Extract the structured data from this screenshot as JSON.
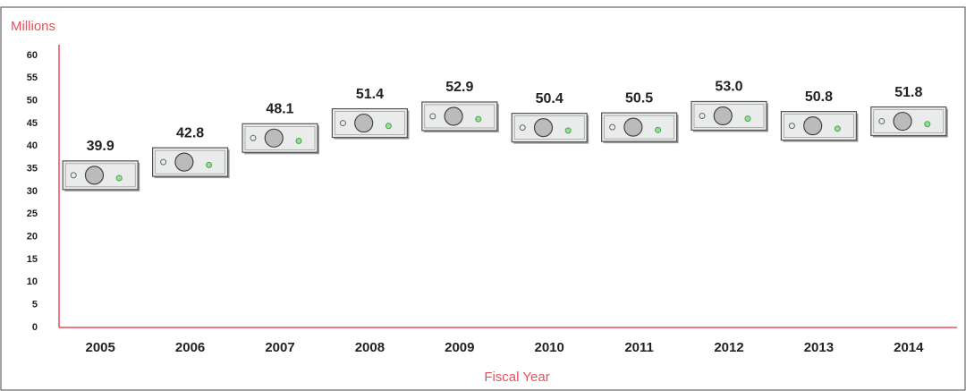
{
  "chart_data": {
    "type": "pictogram",
    "y_label": "Millions",
    "x_label": "Fiscal Year",
    "categories": [
      "2005",
      "2006",
      "2007",
      "2008",
      "2009",
      "2010",
      "2011",
      "2012",
      "2013",
      "2014"
    ],
    "values": [
      39.9,
      42.8,
      48.1,
      51.4,
      52.9,
      50.4,
      50.5,
      53.0,
      50.8,
      51.8
    ],
    "value_labels": [
      "39.9",
      "42.8",
      "48.1",
      "51.4",
      "52.9",
      "50.4",
      "50.5",
      "53.0",
      "50.8",
      "51.8"
    ],
    "ylim": [
      0,
      60
    ],
    "yticks": [
      0,
      5,
      10,
      15,
      20,
      25,
      30,
      35,
      40,
      45,
      50,
      55,
      60
    ],
    "axis_color": "#e8505b",
    "label_color": "#e8505b",
    "bill_color": "#e9ecea"
  }
}
